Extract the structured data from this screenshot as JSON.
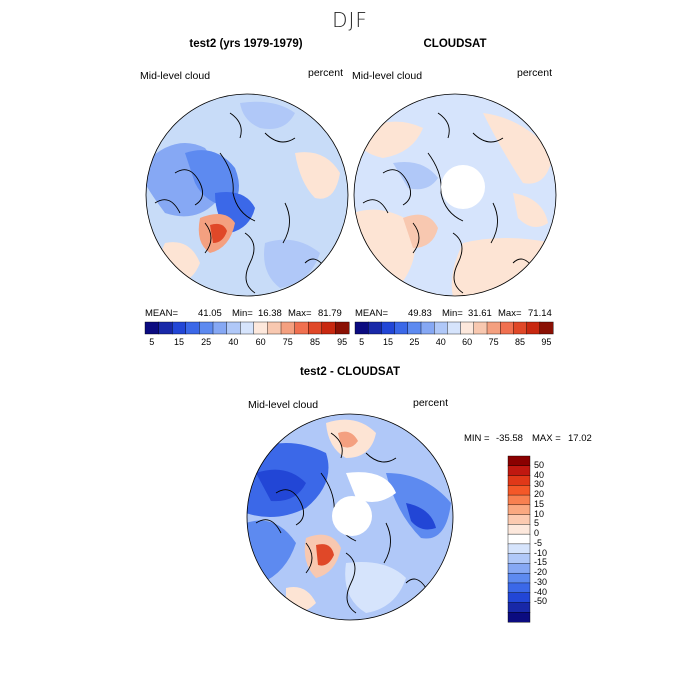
{
  "title": "DJF",
  "panels": [
    {
      "id": "left",
      "title": "test2 (yrs 1979-1979)",
      "variable": "Mid-level cloud",
      "units": "percent",
      "stats": {
        "mean_label": "MEAN=",
        "mean": "41.05",
        "min_label": "Min=",
        "min": "16.38",
        "max_label": "Max=",
        "max": "81.79"
      }
    },
    {
      "id": "right",
      "title": "CLOUDSAT",
      "variable": "Mid-level cloud",
      "units": "percent",
      "stats": {
        "mean_label": "MEAN=",
        "mean": "49.83",
        "min_label": "Min=",
        "min": "31.61",
        "max_label": "Max=",
        "max": "71.14"
      }
    }
  ],
  "top_colorbar": {
    "colors": [
      "#0b0b80",
      "#1828a8",
      "#2246d6",
      "#3b68e8",
      "#5d8af0",
      "#86a8f4",
      "#b0c8f8",
      "#d6e4fc",
      "#fde8dc",
      "#f8c8b0",
      "#f4a080",
      "#f07050",
      "#e04828",
      "#c82810",
      "#8a1004"
    ],
    "tick_labels": [
      "5",
      "15",
      "25",
      "40",
      "60",
      "75",
      "85",
      "95"
    ]
  },
  "diff_panel": {
    "title": "test2 - CLOUDSAT",
    "variable": "Mid-level cloud",
    "units": "percent",
    "stats": {
      "min_label": "MIN =",
      "min": "-35.58",
      "max_label": "MAX =",
      "max": "17.02"
    }
  },
  "diff_colorbar": {
    "colors": [
      "#8a0000",
      "#c01810",
      "#e03818",
      "#f45828",
      "#f88050",
      "#faa880",
      "#fccab0",
      "#fde8dc",
      "#ffffff",
      "#d6e4fc",
      "#b0c8f8",
      "#86a8f4",
      "#5d8af0",
      "#3b68e8",
      "#2246d6",
      "#1828a8",
      "#0b0b80"
    ],
    "tick_labels": [
      "50",
      "40",
      "30",
      "20",
      "15",
      "10",
      "5",
      "0",
      "-5",
      "-10",
      "-15",
      "-20",
      "-30",
      "-40",
      "-50"
    ]
  },
  "palette": {
    "light_blue": "#c8dcf8",
    "mid_blue": "#86a8f4",
    "deep_blue": "#3b68e8",
    "light_pink": "#fde4d4",
    "salmon": "#f4a080",
    "red": "#e04828"
  }
}
